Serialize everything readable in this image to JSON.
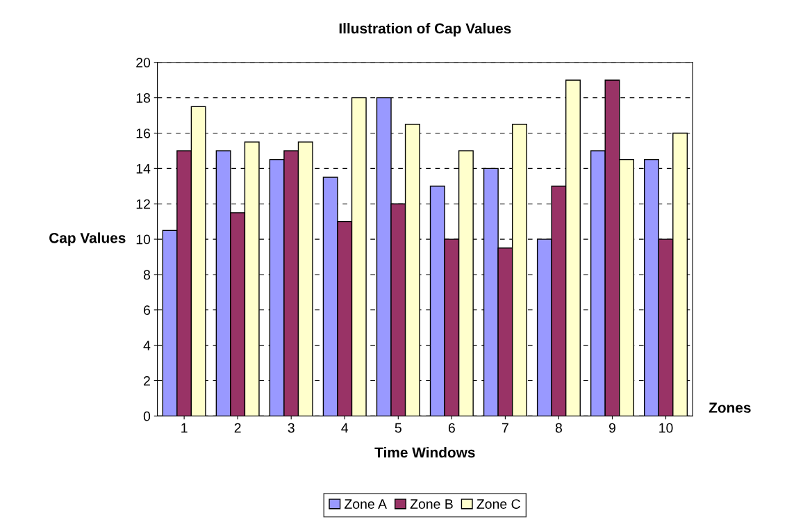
{
  "chart_data": {
    "type": "bar",
    "title": "Illustration of Cap Values",
    "xlabel": "Time Windows",
    "ylabel": "Cap Values",
    "annotations": [
      "Zones"
    ],
    "categories": [
      "1",
      "2",
      "3",
      "4",
      "5",
      "6",
      "7",
      "8",
      "9",
      "10"
    ],
    "series": [
      {
        "name": "Zone A",
        "color": "#9999ff",
        "values": [
          10.5,
          15,
          14.5,
          13.5,
          18,
          13,
          14,
          10,
          15,
          14.5
        ]
      },
      {
        "name": "Zone B",
        "color": "#993366",
        "values": [
          15,
          11.5,
          15,
          11,
          12,
          10,
          9.5,
          13,
          19,
          10
        ]
      },
      {
        "name": "Zone C",
        "color": "#ffffcc",
        "values": [
          17.5,
          15.5,
          15.5,
          18,
          16.5,
          15,
          16.5,
          19,
          14.5,
          16
        ]
      }
    ],
    "ylim": [
      0,
      20
    ],
    "yticks": [
      0,
      2,
      4,
      6,
      8,
      10,
      12,
      14,
      16,
      18,
      20
    ],
    "grid": "y",
    "legend": "bottom"
  }
}
